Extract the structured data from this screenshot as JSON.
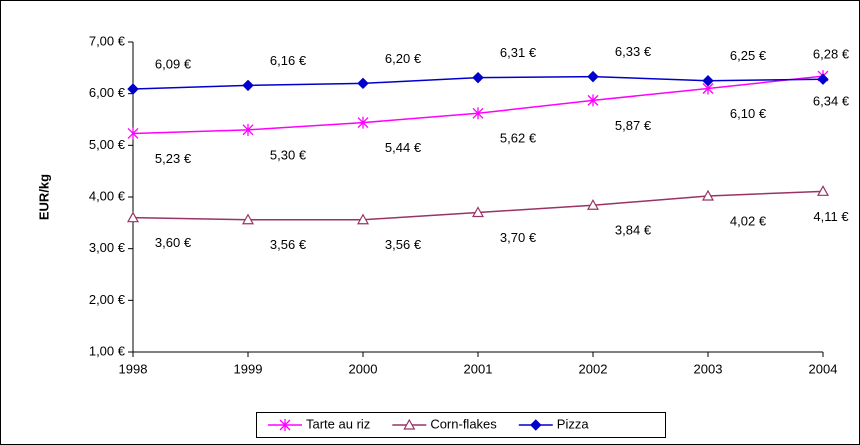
{
  "chart_data": {
    "type": "line",
    "y_label": "EUR/kg",
    "categories": [
      "1998",
      "1999",
      "2000",
      "2001",
      "2002",
      "2003",
      "2004"
    ],
    "ylim": [
      1,
      7
    ],
    "yticks": [
      {
        "value": 1,
        "label": "1,00 €"
      },
      {
        "value": 2,
        "label": "2,00 €"
      },
      {
        "value": 3,
        "label": "3,00 €"
      },
      {
        "value": 4,
        "label": "4,00 €"
      },
      {
        "value": 5,
        "label": "5,00 €"
      },
      {
        "value": 6,
        "label": "6,00 €"
      },
      {
        "value": 7,
        "label": "7,00 €"
      }
    ],
    "grid": false,
    "legend": "bottom",
    "series": [
      {
        "name": "Tarte au riz",
        "color": "#ff00ff",
        "marker": "asterisk",
        "values": [
          5.23,
          5.3,
          5.44,
          5.62,
          5.87,
          6.1,
          6.34
        ],
        "value_labels": [
          "5,23 €",
          "5,30 €",
          "5,44 €",
          "5,62 €",
          "5,87 €",
          "6,10 €",
          "6,34 €"
        ]
      },
      {
        "name": "Corn-flakes",
        "color": "#993366",
        "marker": "triangle",
        "values": [
          3.6,
          3.56,
          3.56,
          3.7,
          3.84,
          4.02,
          4.11
        ],
        "value_labels": [
          "3,60 €",
          "3,56 €",
          "3,56 €",
          "3,70 €",
          "3,84 €",
          "4,02 €",
          "4,11 €"
        ]
      },
      {
        "name": "Pizza",
        "color": "#0000cc",
        "marker": "diamond",
        "values": [
          6.09,
          6.16,
          6.2,
          6.31,
          6.33,
          6.25,
          6.28
        ],
        "value_labels": [
          "6,09 €",
          "6,16 €",
          "6,20 €",
          "6,31 €",
          "6,33 €",
          "6,25 €",
          "6,28 €"
        ]
      }
    ]
  }
}
